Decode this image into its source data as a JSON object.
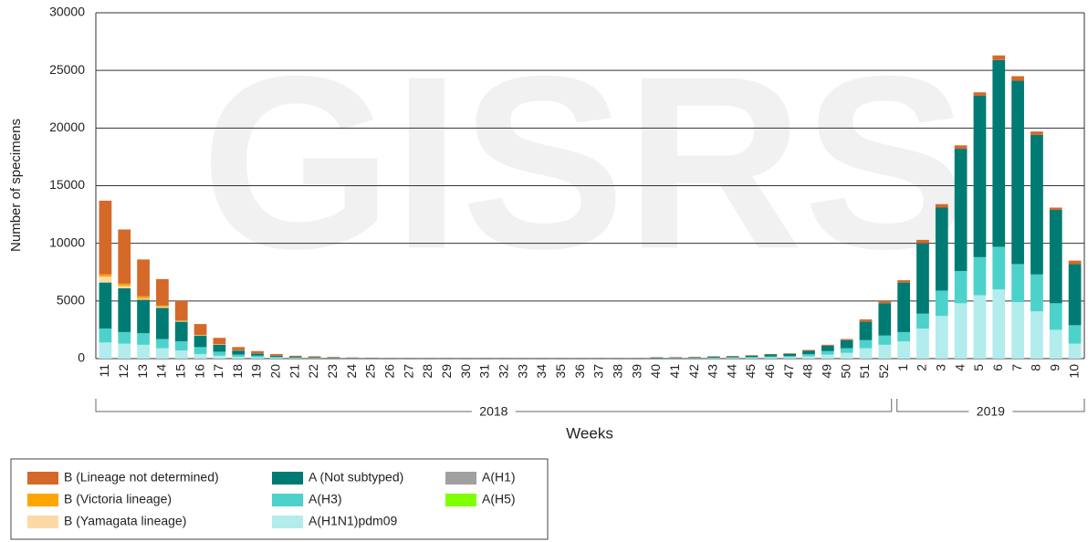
{
  "chart_data": {
    "type": "stacked-bar",
    "watermark": "GISRS",
    "y_label": "Number of specimens",
    "x_label": "Weeks",
    "ylim": [
      0,
      30000
    ],
    "yticks": [
      0,
      5000,
      10000,
      15000,
      20000,
      25000,
      30000
    ],
    "grid": true,
    "groups": [
      {
        "label": "2018",
        "categories": [
          "11",
          "12",
          "13",
          "14",
          "15",
          "16",
          "17",
          "18",
          "19",
          "20",
          "21",
          "22",
          "23",
          "24",
          "25",
          "26",
          "27",
          "28",
          "29",
          "30",
          "31",
          "32",
          "33",
          "34",
          "35",
          "36",
          "37",
          "38",
          "39",
          "40",
          "41",
          "42",
          "43",
          "44",
          "45",
          "46",
          "47",
          "48",
          "49",
          "50",
          "51",
          "52"
        ]
      },
      {
        "label": "2019",
        "categories": [
          "1",
          "2",
          "3",
          "4",
          "5",
          "6",
          "7",
          "8",
          "9",
          "10"
        ]
      }
    ],
    "series": [
      {
        "name": "A(H1N1)pdm09",
        "color": "#b2ecec",
        "values": [
          1400,
          1300,
          1200,
          900,
          700,
          400,
          250,
          150,
          100,
          60,
          40,
          30,
          20,
          15,
          10,
          10,
          10,
          10,
          10,
          10,
          10,
          10,
          10,
          10,
          10,
          10,
          10,
          10,
          10,
          20,
          25,
          30,
          40,
          50,
          60,
          90,
          110,
          200,
          350,
          500,
          900,
          1200,
          1500,
          2600,
          3700,
          4800,
          5500,
          6000,
          4900,
          4100,
          2500,
          1300
        ]
      },
      {
        "name": "A(H3)",
        "color": "#4dd2cb",
        "values": [
          1200,
          1000,
          1000,
          800,
          800,
          600,
          350,
          200,
          150,
          80,
          50,
          40,
          30,
          20,
          15,
          10,
          10,
          10,
          10,
          10,
          10,
          10,
          10,
          10,
          10,
          10,
          10,
          10,
          10,
          20,
          25,
          30,
          40,
          50,
          70,
          100,
          110,
          180,
          300,
          400,
          700,
          800,
          800,
          1300,
          2200,
          2800,
          3300,
          3700,
          3300,
          3200,
          2300,
          1600
        ]
      },
      {
        "name": "A (Not subtyped)",
        "color": "#007b73",
        "values": [
          4000,
          3800,
          2900,
          2700,
          1700,
          1000,
          600,
          350,
          200,
          120,
          70,
          50,
          40,
          30,
          25,
          20,
          20,
          20,
          20,
          20,
          20,
          20,
          20,
          20,
          20,
          20,
          20,
          20,
          20,
          40,
          45,
          50,
          80,
          90,
          120,
          170,
          200,
          300,
          480,
          700,
          1600,
          2800,
          4300,
          6100,
          7200,
          10600,
          14000,
          16200,
          15900,
          12100,
          8100,
          5300
        ]
      },
      {
        "name": "A(H1)",
        "color": "#a0a0a0",
        "values": [
          0,
          0,
          0,
          0,
          0,
          0,
          0,
          0,
          0,
          0,
          0,
          0,
          0,
          0,
          0,
          0,
          0,
          0,
          0,
          0,
          0,
          0,
          0,
          0,
          0,
          0,
          0,
          0,
          0,
          0,
          0,
          0,
          0,
          0,
          0,
          0,
          0,
          0,
          0,
          0,
          0,
          0,
          0,
          0,
          0,
          0,
          0,
          0,
          0,
          0,
          0,
          0
        ]
      },
      {
        "name": "A(H5)",
        "color": "#80ff00",
        "values": [
          0,
          0,
          0,
          0,
          0,
          0,
          0,
          0,
          0,
          0,
          0,
          0,
          0,
          0,
          0,
          0,
          0,
          0,
          0,
          0,
          0,
          0,
          0,
          0,
          0,
          0,
          0,
          0,
          0,
          0,
          0,
          0,
          0,
          0,
          0,
          0,
          0,
          0,
          0,
          0,
          0,
          0,
          0,
          0,
          0,
          0,
          0,
          0,
          0,
          0,
          0,
          0
        ]
      },
      {
        "name": "B (Yamagata lineage)",
        "color": "#fdd9a6",
        "values": [
          500,
          200,
          100,
          100,
          50,
          30,
          20,
          10,
          5,
          5,
          0,
          0,
          0,
          0,
          0,
          0,
          0,
          0,
          0,
          0,
          0,
          0,
          0,
          0,
          0,
          0,
          0,
          0,
          0,
          0,
          0,
          0,
          0,
          0,
          0,
          0,
          0,
          0,
          0,
          0,
          0,
          0,
          0,
          0,
          0,
          0,
          0,
          0,
          0,
          0,
          0,
          0
        ]
      },
      {
        "name": "B (Victoria lineage)",
        "color": "#ffa500",
        "values": [
          200,
          200,
          200,
          100,
          50,
          30,
          20,
          10,
          5,
          5,
          0,
          0,
          0,
          0,
          0,
          0,
          0,
          0,
          0,
          0,
          0,
          0,
          0,
          0,
          0,
          0,
          0,
          0,
          0,
          0,
          0,
          0,
          0,
          0,
          0,
          0,
          0,
          0,
          0,
          0,
          0,
          0,
          0,
          0,
          0,
          0,
          0,
          0,
          0,
          0,
          0,
          0
        ]
      },
      {
        "name": "B (Lineage not determined)",
        "color": "#d4692a",
        "values": [
          6400,
          4700,
          3200,
          2300,
          1700,
          940,
          560,
          280,
          190,
          130,
          90,
          80,
          60,
          35,
          30,
          20,
          20,
          20,
          20,
          20,
          20,
          20,
          20,
          20,
          20,
          20,
          20,
          20,
          20,
          40,
          40,
          45,
          40,
          40,
          50,
          40,
          40,
          70,
          70,
          100,
          200,
          200,
          200,
          300,
          300,
          300,
          300,
          400,
          400,
          300,
          200,
          300
        ]
      }
    ]
  }
}
